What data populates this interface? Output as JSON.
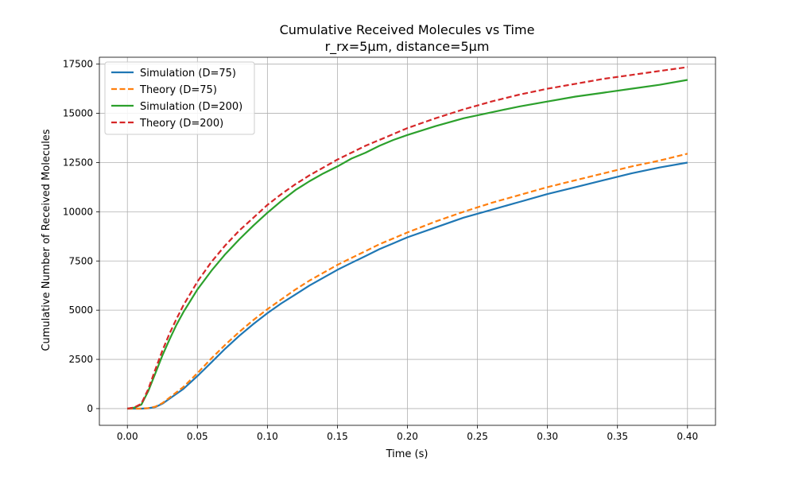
{
  "chart_data": {
    "type": "line",
    "title": "Cumulative Received Molecules vs Time",
    "subtitle": "r_rx=5μm, distance=5μm",
    "xlabel": "Time (s)",
    "ylabel": "Cumulative Number of Received Molecules",
    "xlim": [
      -0.02,
      0.42
    ],
    "ylim": [
      -850,
      17850
    ],
    "xticks": [
      0.0,
      0.05,
      0.1,
      0.15,
      0.2,
      0.25,
      0.3,
      0.35,
      0.4
    ],
    "xtick_labels": [
      "0.00",
      "0.05",
      "0.10",
      "0.15",
      "0.20",
      "0.25",
      "0.30",
      "0.35",
      "0.40"
    ],
    "yticks": [
      0,
      2500,
      5000,
      7500,
      10000,
      12500,
      15000,
      17500
    ],
    "ytick_labels": [
      "0",
      "2500",
      "5000",
      "7500",
      "10000",
      "12500",
      "15000",
      "17500"
    ],
    "grid": true,
    "legend_position": "top-left",
    "series": [
      {
        "name": "Simulation (D=75)",
        "color": "#1f77b4",
        "dash": "solid",
        "x": [
          0.0,
          0.01,
          0.015,
          0.02,
          0.025,
          0.03,
          0.04,
          0.05,
          0.06,
          0.07,
          0.08,
          0.09,
          0.1,
          0.11,
          0.12,
          0.13,
          0.14,
          0.15,
          0.16,
          0.17,
          0.18,
          0.19,
          0.2,
          0.22,
          0.24,
          0.26,
          0.28,
          0.3,
          0.32,
          0.34,
          0.36,
          0.38,
          0.4
        ],
        "y": [
          0,
          0,
          20,
          80,
          250,
          500,
          1000,
          1650,
          2350,
          3050,
          3700,
          4300,
          4850,
          5350,
          5800,
          6250,
          6650,
          7050,
          7400,
          7750,
          8100,
          8400,
          8700,
          9200,
          9700,
          10100,
          10500,
          10900,
          11250,
          11600,
          11950,
          12250,
          12500
        ]
      },
      {
        "name": "Theory (D=75)",
        "color": "#ff7f0e",
        "dash": "dashed",
        "x": [
          0.0,
          0.01,
          0.015,
          0.02,
          0.025,
          0.03,
          0.04,
          0.05,
          0.06,
          0.07,
          0.08,
          0.09,
          0.1,
          0.11,
          0.12,
          0.13,
          0.14,
          0.15,
          0.16,
          0.17,
          0.18,
          0.19,
          0.2,
          0.22,
          0.24,
          0.26,
          0.28,
          0.3,
          0.32,
          0.34,
          0.36,
          0.38,
          0.4
        ],
        "y": [
          0,
          0,
          25,
          100,
          280,
          550,
          1100,
          1800,
          2550,
          3250,
          3900,
          4500,
          5050,
          5550,
          6050,
          6500,
          6900,
          7300,
          7650,
          8000,
          8350,
          8650,
          8950,
          9500,
          10000,
          10450,
          10850,
          11250,
          11600,
          11950,
          12300,
          12600,
          12950
        ]
      },
      {
        "name": "Simulation (D=200)",
        "color": "#2ca02c",
        "dash": "solid",
        "x": [
          0.0,
          0.005,
          0.01,
          0.015,
          0.02,
          0.025,
          0.03,
          0.035,
          0.04,
          0.05,
          0.06,
          0.07,
          0.08,
          0.09,
          0.1,
          0.11,
          0.12,
          0.13,
          0.14,
          0.15,
          0.16,
          0.17,
          0.18,
          0.19,
          0.2,
          0.22,
          0.24,
          0.26,
          0.28,
          0.3,
          0.32,
          0.34,
          0.36,
          0.38,
          0.4
        ],
        "y": [
          0,
          50,
          200,
          900,
          1800,
          2700,
          3500,
          4250,
          4900,
          6050,
          7000,
          7850,
          8600,
          9300,
          9950,
          10550,
          11100,
          11550,
          11950,
          12300,
          12700,
          13000,
          13350,
          13650,
          13900,
          14350,
          14750,
          15050,
          15350,
          15600,
          15850,
          16050,
          16250,
          16450,
          16700
        ]
      },
      {
        "name": "Theory (D=200)",
        "color": "#d62728",
        "dash": "dashed",
        "x": [
          0.0,
          0.005,
          0.01,
          0.015,
          0.02,
          0.025,
          0.03,
          0.035,
          0.04,
          0.05,
          0.06,
          0.07,
          0.08,
          0.09,
          0.1,
          0.11,
          0.12,
          0.13,
          0.14,
          0.15,
          0.16,
          0.17,
          0.18,
          0.19,
          0.2,
          0.22,
          0.24,
          0.26,
          0.28,
          0.3,
          0.32,
          0.34,
          0.36,
          0.38,
          0.4
        ],
        "y": [
          0,
          60,
          250,
          1000,
          2000,
          2950,
          3800,
          4550,
          5250,
          6450,
          7450,
          8300,
          9050,
          9700,
          10350,
          10900,
          11400,
          11850,
          12250,
          12650,
          13000,
          13350,
          13650,
          13950,
          14250,
          14750,
          15200,
          15600,
          15950,
          16250,
          16500,
          16750,
          16950,
          17150,
          17350
        ]
      }
    ]
  }
}
